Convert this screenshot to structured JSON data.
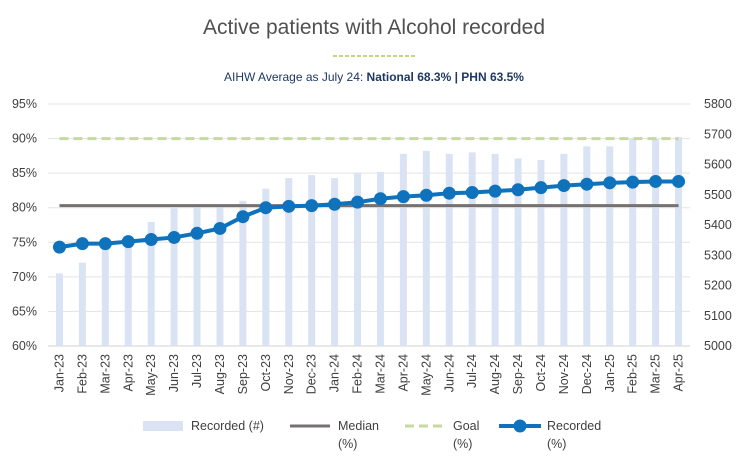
{
  "chart_data": {
    "type": "bar+line",
    "title": "Active patients with Alcohol recorded",
    "subtitle_prefix": "AIHW Average as July 24: ",
    "subtitle_bold": "National 68.3% | PHN 63.5%",
    "categories": [
      "Jan-23",
      "Feb-23",
      "Mar-23",
      "Apr-23",
      "May-23",
      "Jun-23",
      "Jul-23",
      "Aug-23",
      "Sep-23",
      "Oct-23",
      "Nov-23",
      "Dec-23",
      "Jan-24",
      "Feb-24",
      "Mar-24",
      "Apr-24",
      "May-24",
      "Jun-24",
      "Jul-24",
      "Aug-24",
      "Sep-24",
      "Oct-24",
      "Nov-24",
      "Dec-24",
      "Jan-25",
      "Feb-25",
      "Mar-25",
      "Apr-25"
    ],
    "left_axis": {
      "min": 0.6,
      "max": 0.95,
      "ticks": [
        "60%",
        "65%",
        "70%",
        "75%",
        "80%",
        "85%",
        "90%",
        "95%"
      ]
    },
    "right_axis": {
      "min": 5000,
      "max": 5800,
      "ticks": [
        "5000",
        "5100",
        "5200",
        "5300",
        "5400",
        "5500",
        "5600",
        "5700",
        "5800"
      ]
    },
    "series": [
      {
        "name": "Recorded (#)",
        "axis": "right",
        "kind": "bar",
        "color": "#dae3f3",
        "values": [
          5240,
          5275,
          5330,
          5350,
          5410,
          5455,
          5465,
          5465,
          5480,
          5520,
          5555,
          5565,
          5555,
          5570,
          5575,
          5635,
          5645,
          5635,
          5640,
          5635,
          5620,
          5615,
          5635,
          5660,
          5660,
          5685,
          5685,
          5690
        ]
      },
      {
        "name": "Median (%)",
        "axis": "left",
        "kind": "line",
        "color": "#767171",
        "values": [
          0.803,
          0.803,
          0.803,
          0.803,
          0.803,
          0.803,
          0.803,
          0.803,
          0.803,
          0.803,
          0.803,
          0.803,
          0.803,
          0.803,
          0.803,
          0.803,
          0.803,
          0.803,
          0.803,
          0.803,
          0.803,
          0.803,
          0.803,
          0.803,
          0.803,
          0.803,
          0.803,
          0.803
        ]
      },
      {
        "name": "Goal (%)",
        "axis": "left",
        "kind": "dashed",
        "color": "#c5d9a0",
        "values": [
          0.9,
          0.9,
          0.9,
          0.9,
          0.9,
          0.9,
          0.9,
          0.9,
          0.9,
          0.9,
          0.9,
          0.9,
          0.9,
          0.9,
          0.9,
          0.9,
          0.9,
          0.9,
          0.9,
          0.9,
          0.9,
          0.9,
          0.9,
          0.9,
          0.9,
          0.9,
          0.9,
          0.9
        ]
      },
      {
        "name": "Recorded (%)",
        "axis": "left",
        "kind": "line-markers",
        "color": "#0e72bd",
        "values": [
          0.743,
          0.748,
          0.748,
          0.751,
          0.754,
          0.757,
          0.763,
          0.77,
          0.787,
          0.8,
          0.802,
          0.803,
          0.805,
          0.808,
          0.813,
          0.816,
          0.818,
          0.821,
          0.822,
          0.824,
          0.826,
          0.829,
          0.832,
          0.834,
          0.836,
          0.837,
          0.838,
          0.838
        ]
      }
    ],
    "legend": [
      {
        "line1": "Recorded (#)",
        "line2": ""
      },
      {
        "line1": "Median",
        "line2": "(%)"
      },
      {
        "line1": "Goal",
        "line2": "(%)"
      },
      {
        "line1": "Recorded",
        "line2": "(%)"
      }
    ],
    "title_underline_color": "#a4b93a",
    "grid": true,
    "legend_position": "bottom"
  }
}
